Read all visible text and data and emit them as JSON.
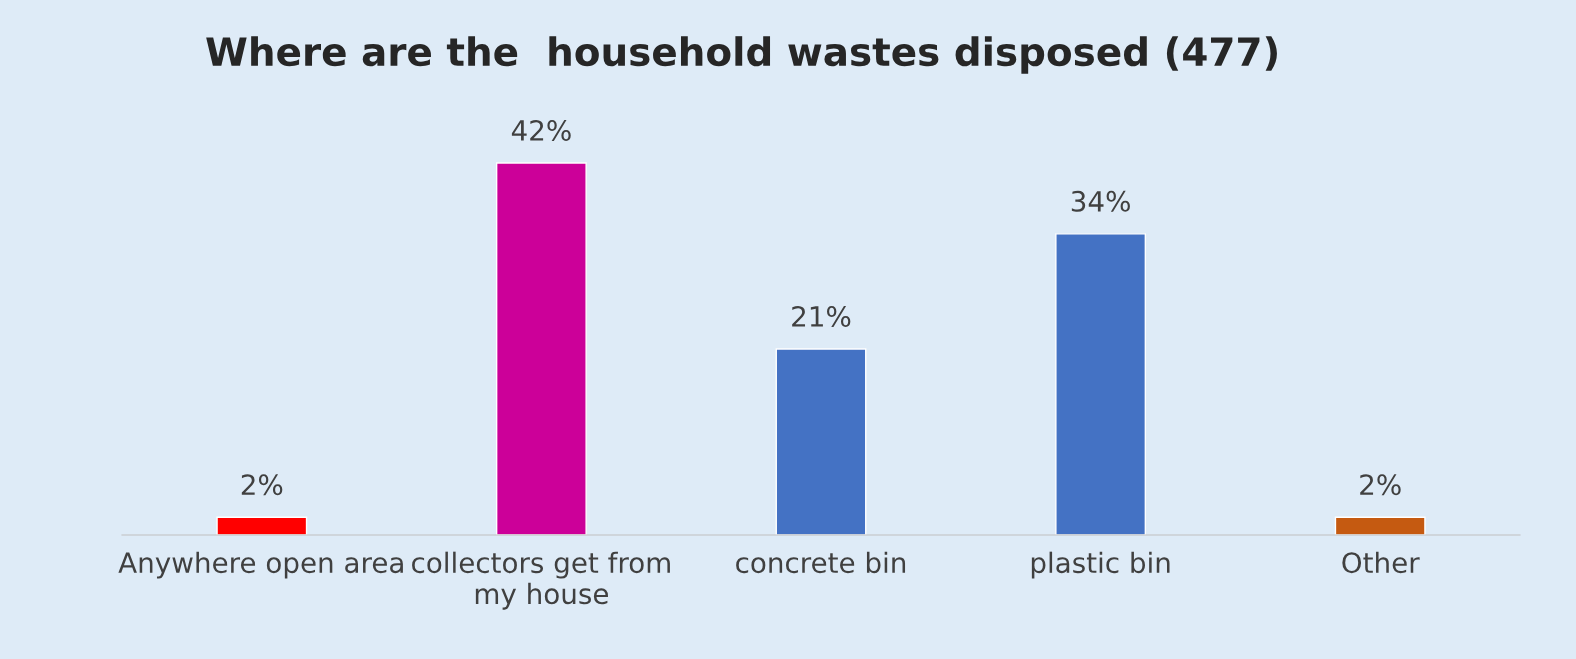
{
  "chart_data": {
    "type": "bar",
    "title": "Where are the  household wastes disposed (477)",
    "categories": [
      "Anywhere open area",
      "collectors get from my house",
      "concrete bin",
      "plastic bin",
      "Other"
    ],
    "values": [
      2,
      42,
      21,
      34,
      2
    ],
    "value_labels": [
      "2%",
      "42%",
      "21%",
      "34%",
      "2%"
    ],
    "colors": [
      "#ff0000",
      "#cc0099",
      "#4472c4",
      "#4472c4",
      "#c55a11"
    ],
    "grid": false,
    "legend": false
  }
}
